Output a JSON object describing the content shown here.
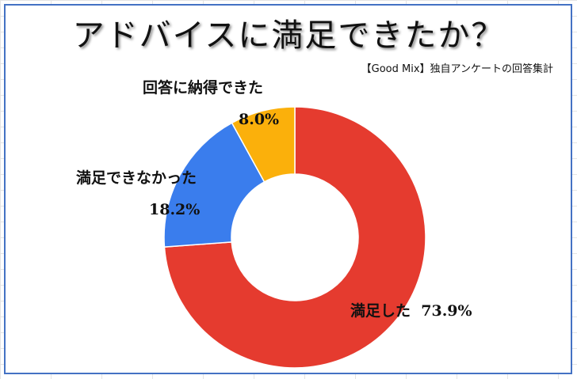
{
  "chart_data": {
    "type": "pie",
    "title": "アドバイスに満足できたか？",
    "subtitle": "【Good Mix】独自アンケートの回答集計",
    "categories": [
      "満足した",
      "満足できなかった",
      "回答に納得できた"
    ],
    "values": [
      73.9,
      18.2,
      8.0
    ],
    "value_labels": [
      "73.9%",
      "18.2%",
      "8.0%"
    ],
    "colors": [
      "#e53b2f",
      "#3a7ded",
      "#fbb00b"
    ],
    "donut": true
  }
}
